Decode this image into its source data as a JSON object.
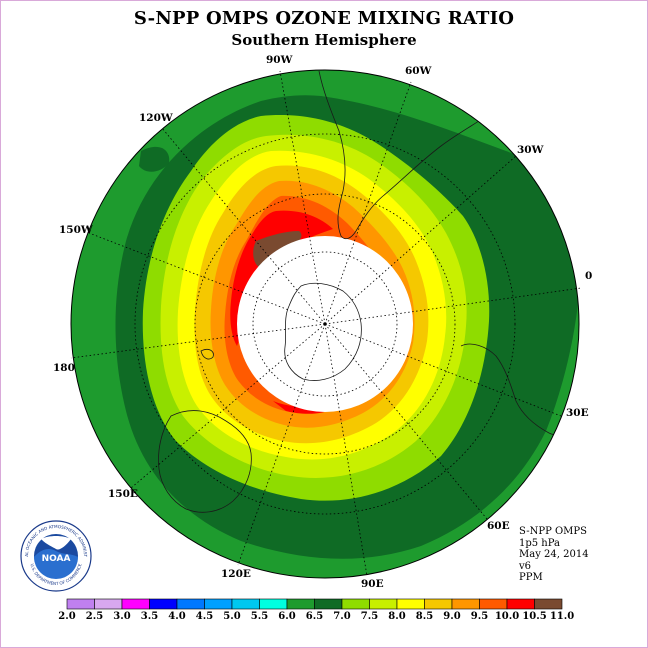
{
  "header": {
    "title": "S-NPP OMPS OZONE MIXING RATIO",
    "subtitle": "Southern Hemisphere"
  },
  "map": {
    "projection": "south polar stereographic",
    "longitude_labels": [
      "90W",
      "60W",
      "30W",
      "0",
      "30E",
      "60E",
      "90E",
      "120E",
      "150E",
      "180",
      "150W",
      "120W"
    ],
    "no_data_region": "polar night (white)",
    "contour_colors": {
      "6.0-6.5": "#1e9b2e",
      "6.5-7.0": "#0f6b25",
      "7.0-7.5": "#8fdc00",
      "7.5-8.0": "#c8f000",
      "8.0-8.5": "#ffff00",
      "8.5-9.0": "#f5c800",
      "9.0-9.5": "#ff9600",
      "9.5-10.0": "#ff5a00",
      "10.0-10.5": "#ff0000",
      "10.5-11.0": "#7a4a30"
    }
  },
  "info": {
    "line1": "S-NPP OMPS",
    "line2": "1p5 hPa",
    "line3": "May 24, 2014",
    "line4": "v6",
    "line5": "PPM"
  },
  "logo": {
    "text": "NOAA",
    "ring_text": "NATIONAL OCEANIC AND ATMOSPHERIC ADMINISTRATION",
    "ring_text_bottom": "U.S. DEPARTMENT OF COMMERCE"
  },
  "colorbar": {
    "labels": [
      "2.0",
      "2.5",
      "3.0",
      "3.5",
      "4.0",
      "4.5",
      "5.0",
      "5.5",
      "6.0",
      "6.5",
      "7.0",
      "7.5",
      "8.0",
      "8.5",
      "9.0",
      "9.5",
      "10.0",
      "10.5",
      "11.0"
    ],
    "colors": [
      "#c080f0",
      "#d8a8f0",
      "#ff00ff",
      "#0000ff",
      "#0078ff",
      "#00a0ff",
      "#00c8f0",
      "#00ffe0",
      "#1e9b2e",
      "#0f6b25",
      "#8fdc00",
      "#c8f000",
      "#ffff00",
      "#f5c800",
      "#ff9600",
      "#ff5a00",
      "#ff0000",
      "#7a4a30"
    ]
  }
}
